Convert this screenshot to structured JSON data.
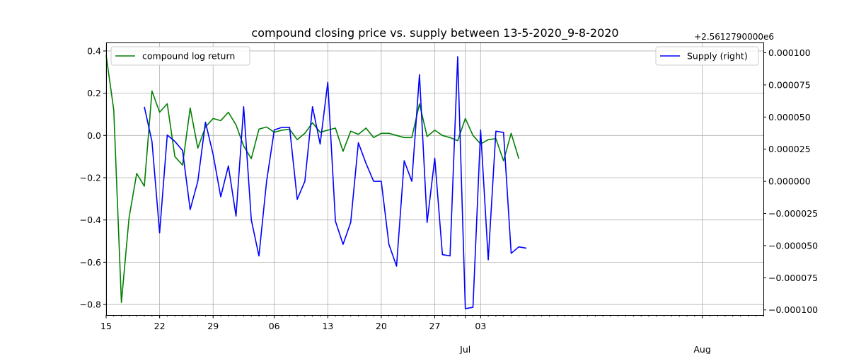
{
  "chart_data": {
    "type": "line",
    "title": "compound closing price vs. supply between 13-5-2020_9-8-2020",
    "right_offset_label": "+2.5612790000e6",
    "grid": true,
    "x": {
      "start": "2020-05-15",
      "end": "2020-08-09",
      "tick_labels": [
        {
          "date": "2020-05-15",
          "label": "15"
        },
        {
          "date": "2020-05-22",
          "label": "22"
        },
        {
          "date": "2020-05-29",
          "label": "29"
        },
        {
          "date": "2020-06-06",
          "label": "06"
        },
        {
          "date": "2020-06-13",
          "label": "13"
        },
        {
          "date": "2020-06-20",
          "label": "20"
        },
        {
          "date": "2020-06-27",
          "label": "27"
        },
        {
          "date": "2020-07-03",
          "label": "03"
        }
      ],
      "month_labels": [
        {
          "date": "2020-07-01",
          "label": "Jul"
        },
        {
          "date": "2020-08-01",
          "label": "Aug"
        }
      ]
    },
    "y_left": {
      "ylim": [
        -0.85,
        0.44
      ],
      "ticks": [
        -0.8,
        -0.6,
        -0.4,
        -0.2,
        0.0,
        0.2,
        0.4
      ],
      "tick_labels": [
        "−0.8",
        "−0.6",
        "−0.4",
        "−0.2",
        "0.0",
        "0.2",
        "0.4"
      ]
    },
    "y_right": {
      "ylim": [
        -0.000104,
        0.000108
      ],
      "ticks": [
        -0.0001,
        -7.5e-05,
        -5e-05,
        -2.5e-05,
        0.0,
        2.5e-05,
        5e-05,
        7.5e-05,
        0.0001
      ],
      "tick_labels": [
        "−0.000100",
        "−0.000075",
        "−0.000050",
        "−0.000025",
        "0.000000",
        "0.000025",
        "0.000050",
        "0.000075",
        "0.000100"
      ]
    },
    "series": [
      {
        "name": "compound log return",
        "color": "#008000",
        "axis": "left",
        "legend": "upper-left",
        "x": [
          "2020-05-15",
          "2020-05-16",
          "2020-05-17",
          "2020-05-18",
          "2020-05-19",
          "2020-05-20",
          "2020-05-21",
          "2020-05-22",
          "2020-05-23",
          "2020-05-24",
          "2020-05-25",
          "2020-05-26",
          "2020-05-27",
          "2020-05-28",
          "2020-05-29",
          "2020-05-30",
          "2020-05-31",
          "2020-06-01",
          "2020-06-02",
          "2020-06-03",
          "2020-06-04",
          "2020-06-05",
          "2020-06-06",
          "2020-06-07",
          "2020-06-08",
          "2020-06-09",
          "2020-06-10",
          "2020-06-11",
          "2020-06-12",
          "2020-06-13",
          "2020-06-14",
          "2020-06-15",
          "2020-06-16",
          "2020-06-17",
          "2020-06-18",
          "2020-06-19",
          "2020-06-20",
          "2020-06-21",
          "2020-06-22",
          "2020-06-23",
          "2020-06-24",
          "2020-06-25",
          "2020-06-26",
          "2020-06-27",
          "2020-06-28",
          "2020-06-29",
          "2020-06-30",
          "2020-07-01",
          "2020-07-02",
          "2020-07-03",
          "2020-07-04",
          "2020-07-05",
          "2020-07-06",
          "2020-07-07",
          "2020-07-08"
        ],
        "values": [
          0.38,
          0.12,
          -0.79,
          -0.39,
          -0.18,
          -0.24,
          0.21,
          0.11,
          0.15,
          -0.1,
          -0.14,
          0.13,
          -0.06,
          0.04,
          0.08,
          0.07,
          0.11,
          0.05,
          -0.05,
          -0.11,
          0.03,
          0.04,
          0.015,
          0.025,
          0.03,
          -0.02,
          0.01,
          0.06,
          0.015,
          0.025,
          0.035,
          -0.075,
          0.02,
          0.005,
          0.035,
          -0.01,
          0.01,
          0.01,
          0.0,
          -0.01,
          -0.01,
          0.15,
          -0.005,
          0.025,
          0.0,
          -0.01,
          -0.025,
          0.08,
          0.0,
          -0.04,
          -0.02,
          -0.015,
          -0.12,
          0.01,
          -0.11
        ]
      },
      {
        "name": "Supply (right)",
        "color": "#0000ff",
        "axis": "right",
        "legend": "upper-right",
        "x": [
          "2020-05-20",
          "2020-05-21",
          "2020-05-22",
          "2020-05-23",
          "2020-05-24",
          "2020-05-25",
          "2020-05-26",
          "2020-05-27",
          "2020-05-28",
          "2020-05-29",
          "2020-05-30",
          "2020-05-31",
          "2020-06-01",
          "2020-06-02",
          "2020-06-03",
          "2020-06-04",
          "2020-06-05",
          "2020-06-06",
          "2020-06-07",
          "2020-06-08",
          "2020-06-09",
          "2020-06-10",
          "2020-06-11",
          "2020-06-12",
          "2020-06-13",
          "2020-06-14",
          "2020-06-15",
          "2020-06-16",
          "2020-06-17",
          "2020-06-18",
          "2020-06-19",
          "2020-06-20",
          "2020-06-21",
          "2020-06-22",
          "2020-06-23",
          "2020-06-24",
          "2020-06-25",
          "2020-06-26",
          "2020-06-27",
          "2020-06-28",
          "2020-06-29",
          "2020-06-30",
          "2020-07-01",
          "2020-07-02",
          "2020-07-03",
          "2020-07-04",
          "2020-07-05",
          "2020-07-06",
          "2020-07-07",
          "2020-07-08",
          "2020-07-09"
        ],
        "values": [
          5.8e-05,
          3.1e-05,
          -4e-05,
          3.6e-05,
          3.1e-05,
          2.4e-05,
          -2.2e-05,
          0.0,
          4.6e-05,
          2.1e-05,
          -1.2e-05,
          1.2e-05,
          -2.7e-05,
          5.8e-05,
          -3e-05,
          -5.8e-05,
          0.0,
          4e-05,
          4.2e-05,
          4.2e-05,
          -1.4e-05,
          0.0,
          5.8e-05,
          2.9e-05,
          7.7e-05,
          -3.1e-05,
          -4.9e-05,
          -3.2e-05,
          3e-05,
          1.4e-05,
          0.0,
          0.0,
          -4.9e-05,
          -6.6e-05,
          1.6e-05,
          0.0,
          8.3e-05,
          -3.2e-05,
          1.8e-05,
          -5.7e-05,
          -5.8e-05,
          9.7e-05,
          -9.9e-05,
          -9.8e-05,
          4e-05,
          -6.1e-05,
          3.9e-05,
          3.8e-05,
          -5.6e-05,
          -5.1e-05,
          -5.2e-05
        ]
      }
    ]
  }
}
